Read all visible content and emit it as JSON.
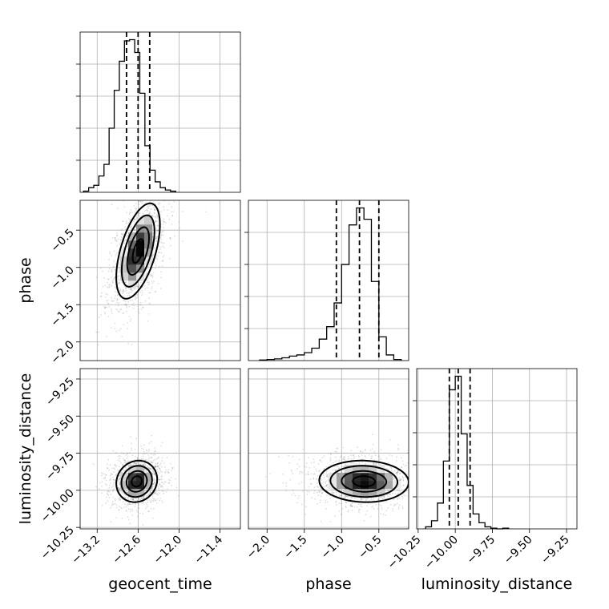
{
  "chart_data": {
    "type": "corner",
    "parameters": [
      "geocent_time",
      "phase",
      "luminosity_distance"
    ],
    "labels": {
      "geocent_time": "geocent_time",
      "phase": "phase",
      "luminosity_distance": "luminosity_distance"
    },
    "ranges": {
      "geocent_time": [
        -13.45,
        -11.1
      ],
      "phase": [
        -2.25,
        -0.1
      ],
      "luminosity_distance": [
        -10.26,
        -9.18
      ]
    },
    "ticks": {
      "geocent_time": [
        {
          "value": -13.2,
          "label": "−13.2"
        },
        {
          "value": -12.6,
          "label": "−12.6"
        },
        {
          "value": -12.0,
          "label": "−12.0"
        },
        {
          "value": -11.4,
          "label": "−11.4"
        }
      ],
      "phase": [
        {
          "value": -2.0,
          "label": "−2.0"
        },
        {
          "value": -1.5,
          "label": "−1.5"
        },
        {
          "value": -1.0,
          "label": "−1.0"
        },
        {
          "value": -0.5,
          "label": "−0.5"
        }
      ],
      "luminosity_distance": [
        {
          "value": -10.25,
          "label": "−10.25"
        },
        {
          "value": -10.0,
          "label": "−10.00"
        },
        {
          "value": -9.75,
          "label": "−9.75"
        },
        {
          "value": -9.5,
          "label": "−9.50"
        },
        {
          "value": -9.25,
          "label": "−9.25"
        }
      ]
    },
    "histograms": {
      "geocent_time": {
        "bin_start": -13.4,
        "bin_width": 0.075,
        "counts": [
          2,
          8,
          12,
          28,
          48,
          110,
          175,
          225,
          260,
          262,
          240,
          170,
          80,
          38,
          18,
          8,
          4,
          2
        ],
        "quantiles": [
          -12.77,
          -12.6,
          -12.43
        ]
      },
      "phase": {
        "bin_start": -2.1,
        "bin_width": 0.1,
        "counts": [
          1,
          2,
          3,
          5,
          8,
          10,
          14,
          22,
          38,
          60,
          102,
          170,
          240,
          270,
          250,
          140,
          42,
          10,
          2
        ],
        "quantiles": [
          -1.07,
          -0.76,
          -0.5
        ]
      },
      "luminosity_distance": {
        "bin_start": -10.2,
        "bin_width": 0.04,
        "counts": [
          3,
          12,
          38,
          100,
          205,
          225,
          140,
          64,
          22,
          9,
          3,
          1,
          0,
          1
        ],
        "quantiles": [
          -10.04,
          -9.98,
          -9.9
        ]
      }
    },
    "pairs": [
      {
        "x": "geocent_time",
        "y": "phase",
        "center": [
          -12.6,
          -0.78
        ],
        "sd": [
          0.16,
          0.32
        ],
        "corr": 0.55
      },
      {
        "x": "geocent_time",
        "y": "luminosity_distance",
        "center": [
          -12.62,
          -9.94
        ],
        "sd": [
          0.15,
          0.07
        ],
        "corr": 0.1
      },
      {
        "x": "phase",
        "y": "luminosity_distance",
        "center": [
          -0.7,
          -9.94
        ],
        "sd": [
          0.3,
          0.07
        ],
        "corr": -0.05
      }
    ],
    "grid": true
  }
}
